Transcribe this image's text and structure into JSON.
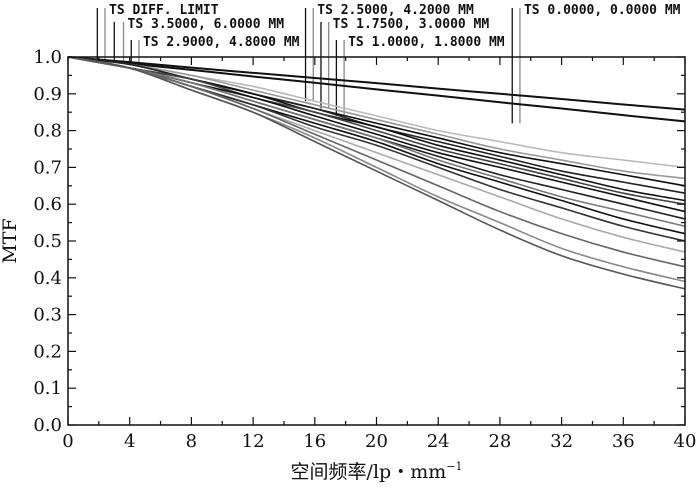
{
  "chart_data": {
    "type": "line",
    "xlabel": "空间频率/lp・mm",
    "xlabel_sup": "−1",
    "ylabel": "MTF",
    "xlim": [
      0,
      40
    ],
    "ylim": [
      0,
      1.0
    ],
    "x_ticks": [
      "0",
      "4",
      "8",
      "12",
      "16",
      "20",
      "24",
      "28",
      "32",
      "36",
      "40"
    ],
    "y_ticks": [
      "0.0",
      "0.1",
      "0.2",
      "0.3",
      "0.4",
      "0.5",
      "0.6",
      "0.7",
      "0.8",
      "0.9",
      "1.0"
    ],
    "grid": false,
    "legend": [
      {
        "text": "TS DIFF. LIMIT",
        "markers_x": [
          1.9,
          2.4
        ]
      },
      {
        "text": "TS 3.5000, 6.0000 MM",
        "markers_x": [
          3.0,
          3.6
        ]
      },
      {
        "text": "TS 2.9000, 4.8000 MM",
        "markers_x": [
          4.1,
          4.6
        ]
      },
      {
        "text": "TS 2.5000, 4.2000 MM",
        "markers_x": [
          15.4,
          15.9
        ]
      },
      {
        "text": "TS 1.7500, 3.0000 MM",
        "markers_x": [
          16.4,
          16.9
        ]
      },
      {
        "text": "TS 1.0000, 1.8000 MM",
        "markers_x": [
          17.4,
          17.9
        ]
      },
      {
        "text": "TS 0.0000, 0.0000 MM",
        "markers_x": [
          28.8,
          29.3
        ]
      }
    ],
    "x": [
      0,
      4,
      8,
      12,
      16,
      20,
      24,
      28,
      32,
      36,
      40
    ],
    "series": [
      {
        "values": [
          1.0,
          0.986,
          0.971,
          0.957,
          0.943,
          0.929,
          0.914,
          0.9,
          0.886,
          0.871,
          0.857
        ]
      },
      {
        "values": [
          1.0,
          0.982,
          0.965,
          0.947,
          0.93,
          0.912,
          0.895,
          0.877,
          0.86,
          0.842,
          0.825
        ]
      },
      {
        "values": [
          1.0,
          0.98,
          0.95,
          0.92,
          0.88,
          0.84,
          0.8,
          0.77,
          0.74,
          0.72,
          0.7
        ]
      },
      {
        "values": [
          1.0,
          0.98,
          0.95,
          0.91,
          0.87,
          0.83,
          0.79,
          0.75,
          0.72,
          0.69,
          0.67
        ]
      },
      {
        "values": [
          1.0,
          0.98,
          0.94,
          0.9,
          0.86,
          0.82,
          0.78,
          0.74,
          0.71,
          0.68,
          0.65
        ]
      },
      {
        "values": [
          1.0,
          0.98,
          0.94,
          0.9,
          0.86,
          0.81,
          0.77,
          0.73,
          0.69,
          0.66,
          0.63
        ]
      },
      {
        "values": [
          1.0,
          0.97,
          0.94,
          0.9,
          0.85,
          0.81,
          0.76,
          0.72,
          0.68,
          0.64,
          0.61
        ]
      },
      {
        "values": [
          1.0,
          0.97,
          0.94,
          0.89,
          0.85,
          0.8,
          0.75,
          0.71,
          0.67,
          0.63,
          0.6
        ]
      },
      {
        "values": [
          1.0,
          0.97,
          0.93,
          0.89,
          0.84,
          0.79,
          0.74,
          0.7,
          0.66,
          0.62,
          0.58
        ]
      },
      {
        "values": [
          1.0,
          0.97,
          0.93,
          0.88,
          0.83,
          0.78,
          0.73,
          0.68,
          0.64,
          0.6,
          0.56
        ]
      },
      {
        "values": [
          1.0,
          0.97,
          0.93,
          0.88,
          0.83,
          0.78,
          0.72,
          0.67,
          0.62,
          0.58,
          0.54
        ]
      },
      {
        "values": [
          1.0,
          0.97,
          0.92,
          0.87,
          0.82,
          0.77,
          0.71,
          0.66,
          0.61,
          0.56,
          0.52
        ]
      },
      {
        "values": [
          1.0,
          0.97,
          0.92,
          0.87,
          0.81,
          0.76,
          0.7,
          0.64,
          0.59,
          0.54,
          0.5
        ]
      },
      {
        "values": [
          1.0,
          0.97,
          0.92,
          0.86,
          0.8,
          0.74,
          0.68,
          0.62,
          0.56,
          0.51,
          0.47
        ]
      },
      {
        "values": [
          1.0,
          0.97,
          0.92,
          0.86,
          0.79,
          0.72,
          0.65,
          0.58,
          0.52,
          0.47,
          0.43
        ]
      },
      {
        "values": [
          1.0,
          0.97,
          0.91,
          0.85,
          0.78,
          0.7,
          0.62,
          0.55,
          0.48,
          0.43,
          0.39
        ]
      },
      {
        "values": [
          1.0,
          0.97,
          0.91,
          0.85,
          0.77,
          0.69,
          0.61,
          0.53,
          0.46,
          0.41,
          0.37
        ]
      }
    ],
    "series_colors": [
      "#111111",
      "#111111",
      "#bbbbbb",
      "#999999",
      "#111111",
      "#222222",
      "#111111",
      "#444444",
      "#111111",
      "#222222",
      "#777777",
      "#111111",
      "#333333",
      "#aaaaaa",
      "#666666",
      "#888888",
      "#555555"
    ]
  }
}
